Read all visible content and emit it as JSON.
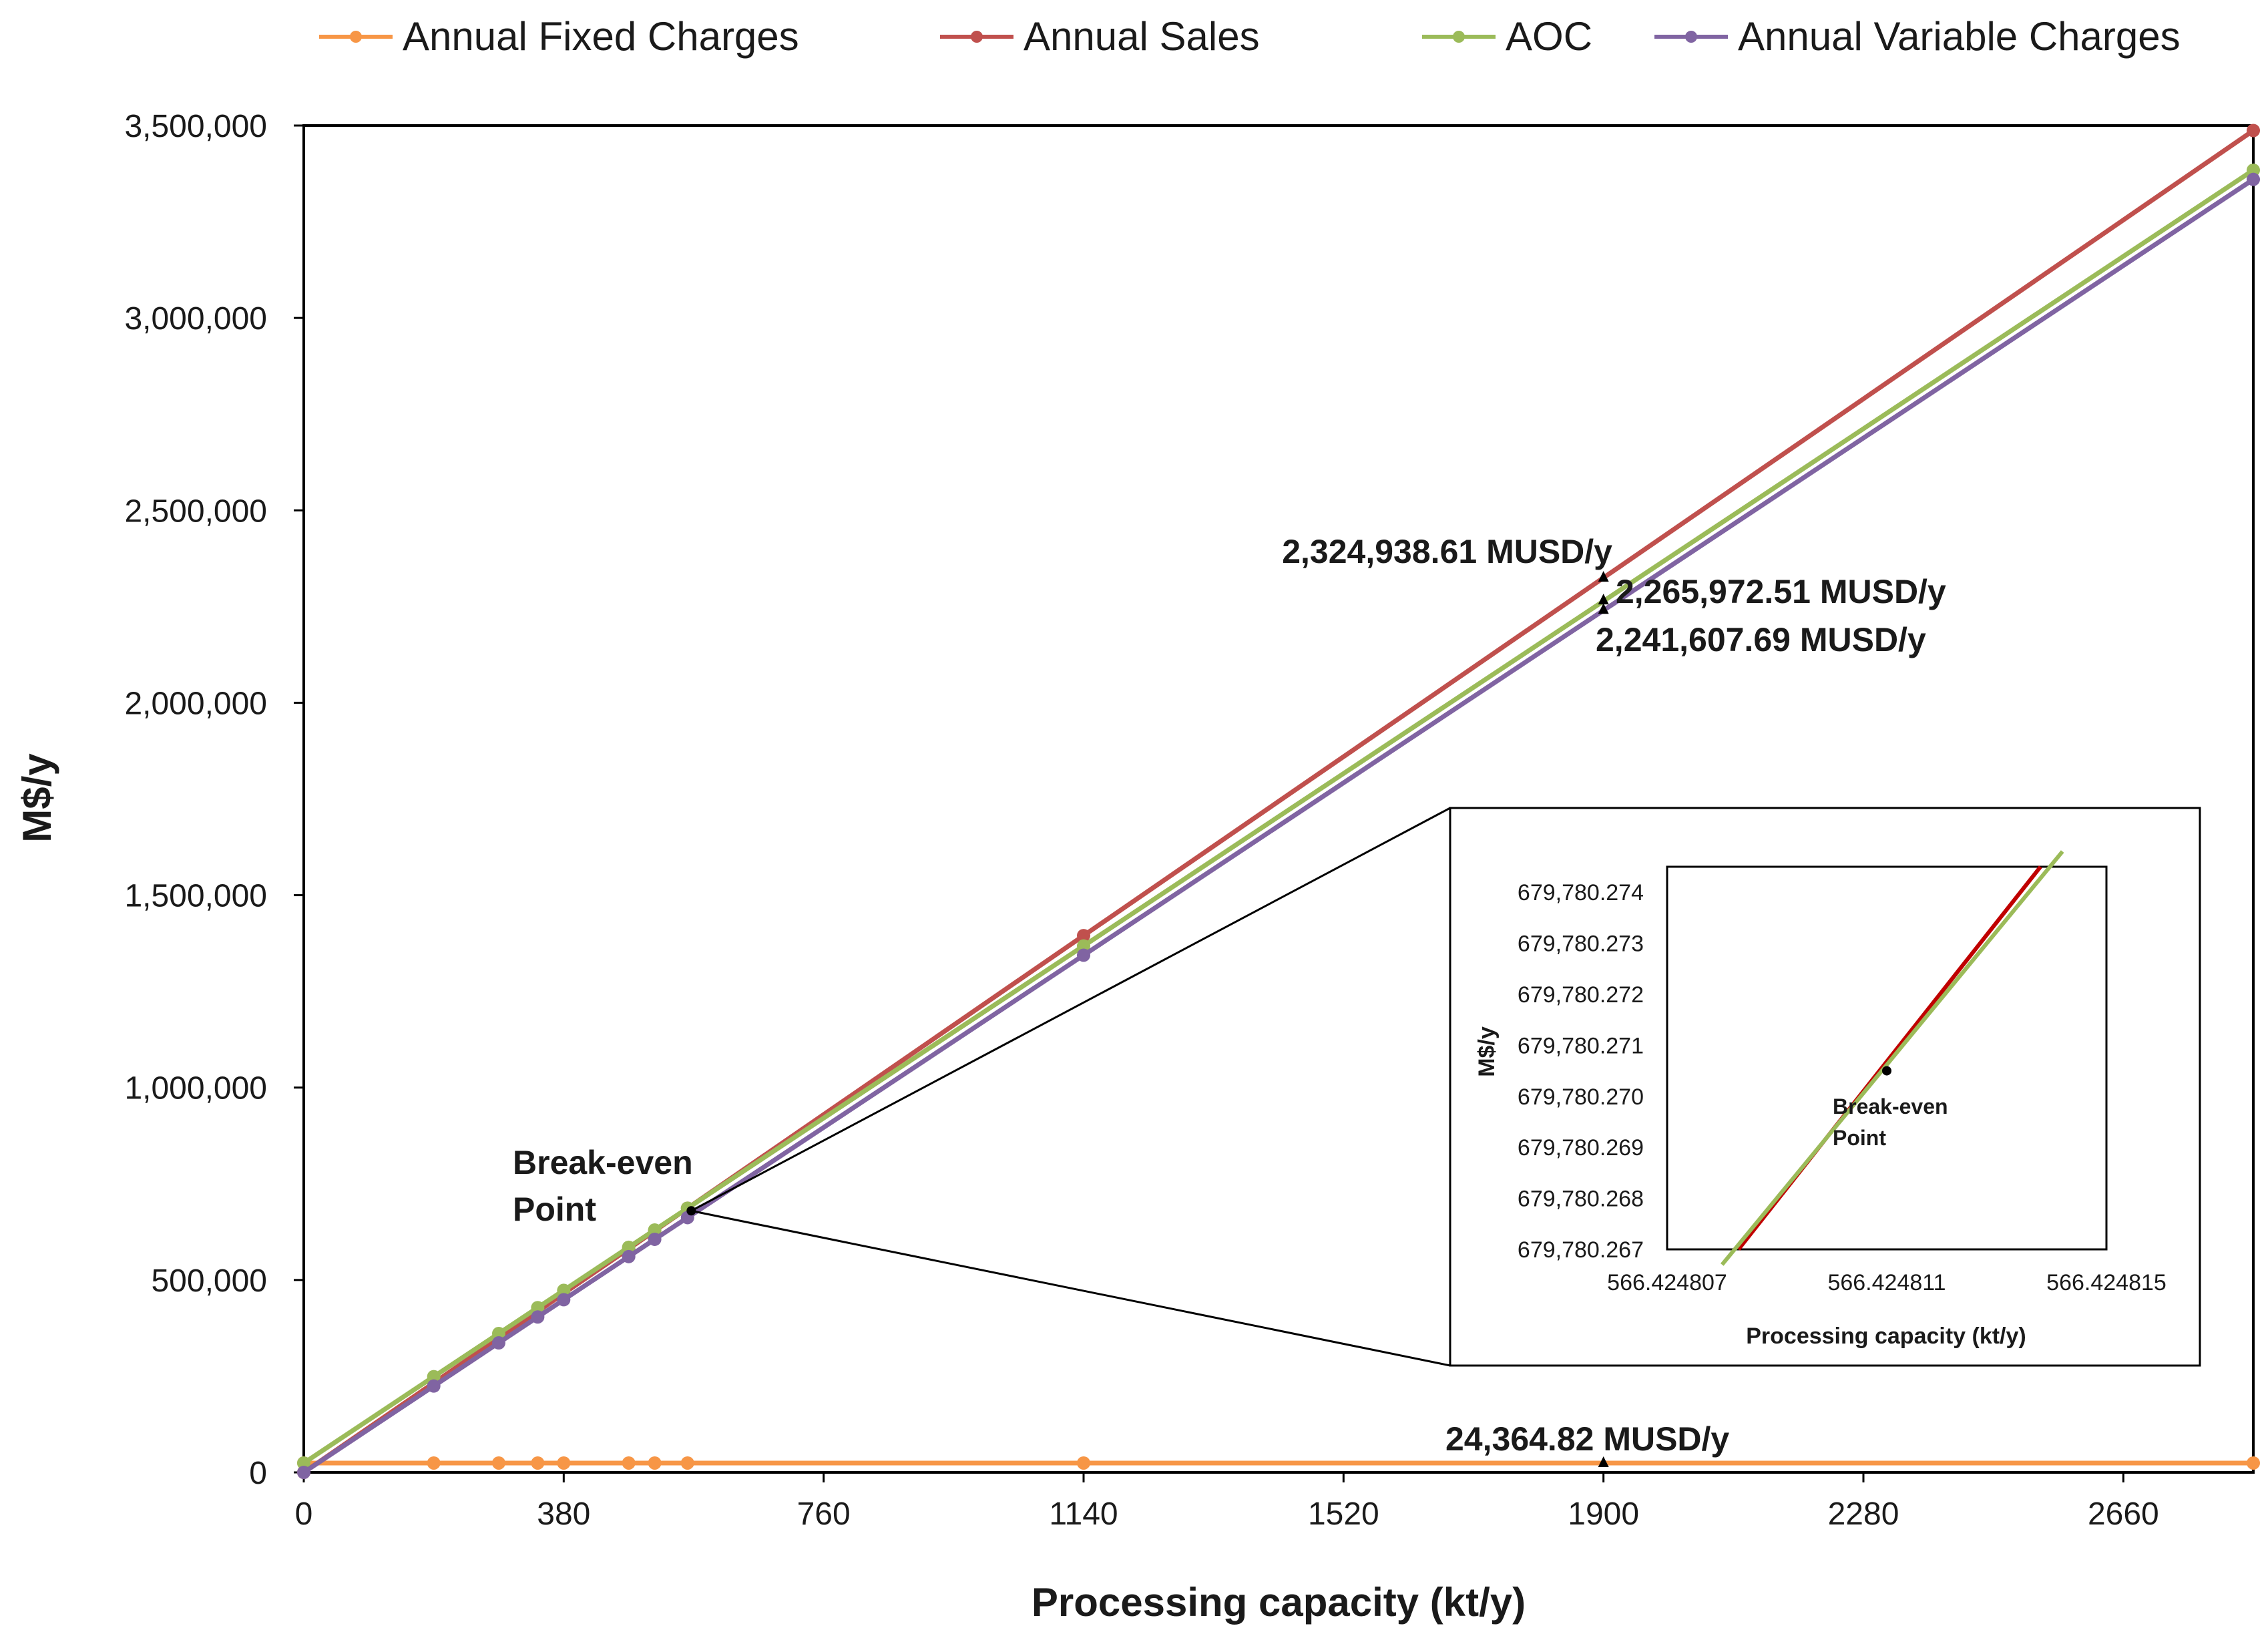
{
  "chart_data": {
    "type": "line",
    "xlabel": "Processing capacity (kt/y)",
    "ylabel": "M$/y",
    "xlim": [
      0,
      2850
    ],
    "ylim": [
      0,
      3500000
    ],
    "x_ticks": [
      "0",
      "380",
      "760",
      "1140",
      "1520",
      "1900",
      "2280",
      "2660"
    ],
    "y_ticks": [
      "0",
      "500,000",
      "1,000,000",
      "1,500,000",
      "2,000,000",
      "2,500,000",
      "3,000,000",
      "3,500,000"
    ],
    "legend_position": "top",
    "x": [
      0,
      190,
      285,
      342,
      380,
      475,
      513,
      561,
      1140,
      2850
    ],
    "series": [
      {
        "name": "Annual Fixed Charges",
        "color": "#F79646",
        "values": [
          24364.82,
          24364.82,
          24364.82,
          24364.82,
          24364.82,
          24364.82,
          24364.82,
          24364.82,
          24364.82,
          24364.82
        ]
      },
      {
        "name": "Annual Sales",
        "color": "#C0504D",
        "values": [
          0,
          232500,
          348700,
          418400,
          465000,
          581200,
          627700,
          686500,
          1395000,
          3487000
        ]
      },
      {
        "name": "AOC",
        "color": "#9BBB59",
        "values": [
          24364.82,
          248800,
          360900,
          428200,
          473000,
          585100,
          630000,
          686500,
          1368000,
          3384000
        ]
      },
      {
        "name": "Annual Variable Charges",
        "color": "#8064A2",
        "values": [
          0,
          224400,
          336600,
          403900,
          448700,
          560800,
          605700,
          662100,
          1344000,
          3360000
        ]
      }
    ],
    "annotations": [
      {
        "text": "2,324,938.61 MUSD/y",
        "x": 1900,
        "y": 2324938.61
      },
      {
        "text": "2,265,972.51 MUSD/y",
        "x": 1900,
        "y": 2265972.51
      },
      {
        "text": "2,241,607.69 MUSD/y",
        "x": 1900,
        "y": 2241607.69
      },
      {
        "text": "24,364.82 MUSD/y",
        "x": 1900,
        "y": 24364.82
      }
    ],
    "break_even": {
      "label_line1": "Break-even",
      "label_line2": "Point",
      "x": 566.424811,
      "y": 679780.2705
    },
    "inset": {
      "xlabel": "Processing capacity (kt/y)",
      "ylabel": "M$/y",
      "xlim": [
        566.424807,
        566.424815
      ],
      "ylim": [
        679780.267,
        679780.2745
      ],
      "x_ticks": [
        {
          "label": "566.424807",
          "value": 566.424807
        },
        {
          "label": "566.424811",
          "value": 566.424811
        },
        {
          "label": "566.424815",
          "value": 566.424815
        }
      ],
      "y_ticks": [
        {
          "label": "679,780.267",
          "value": 679780.267
        },
        {
          "label": "679,780.268",
          "value": 679780.268
        },
        {
          "label": "679,780.269",
          "value": 679780.269
        },
        {
          "label": "679,780.270",
          "value": 679780.27
        },
        {
          "label": "679,780.271",
          "value": 679780.271
        },
        {
          "label": "679,780.272",
          "value": 679780.272
        },
        {
          "label": "679,780.273",
          "value": 679780.273
        },
        {
          "label": "679,780.274",
          "value": 679780.274
        }
      ],
      "lines": [
        {
          "name": "Annual Sales",
          "color": "#C00000",
          "points": [
            [
              566.4248083,
              679780.267
            ],
            [
              566.4248138,
              679780.2745
            ]
          ]
        },
        {
          "name": "AOC",
          "color": "#9BBB59",
          "points": [
            [
              566.424808,
              679780.2667
            ],
            [
              566.4248142,
              679780.2748
            ]
          ]
        }
      ],
      "point": {
        "x": 566.424811,
        "y": 679780.2705,
        "label_line1": "Break-even",
        "label_line2": "Point"
      }
    }
  }
}
